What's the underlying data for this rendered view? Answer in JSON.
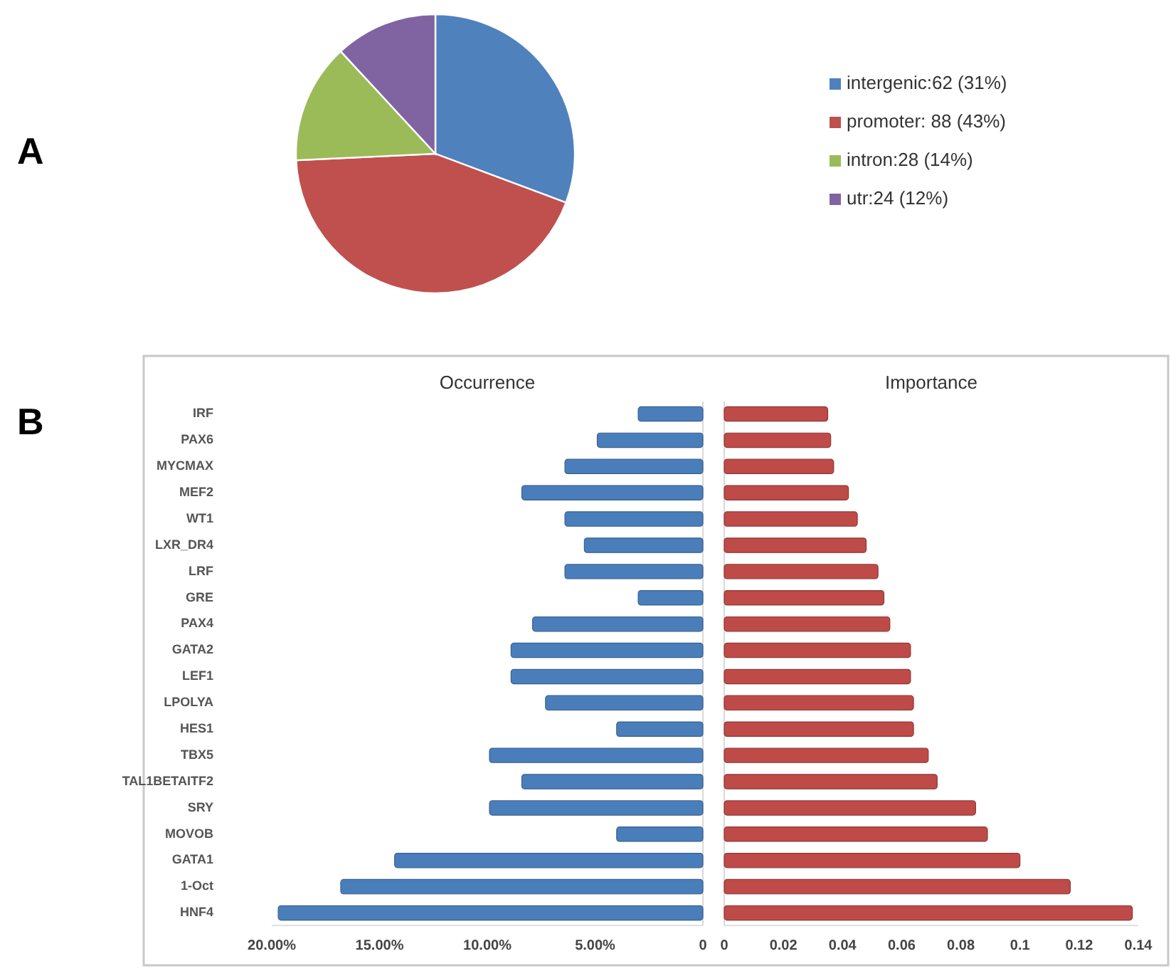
{
  "chart_data": [
    {
      "type": "pie",
      "categories": [
        "intergenic:62 (31%)",
        "promoter: 88 (43%)",
        "intron:28 (14%)",
        "utr:24 (12%)"
      ],
      "values": [
        62,
        88,
        28,
        24
      ],
      "colors": [
        "#4f81bd",
        "#c0504d",
        "#9bbb59",
        "#8064a2"
      ],
      "legend": "right",
      "annotations": [
        "A"
      ]
    },
    {
      "type": "bar",
      "orientation": "horizontal",
      "title": "Occurrence",
      "annotations": [
        "B"
      ],
      "categories": [
        "IRF",
        "PAX6",
        "MYCMAX",
        "MEF2",
        "WT1",
        "LXR_DR4",
        "LRF",
        "GRE",
        "PAX4",
        "GATA2",
        "LEF1",
        "LPOLYA",
        "HES1",
        "TBX5",
        "TAL1BETAITF2",
        "SRY",
        "MOVOB",
        "GATA1",
        "1-Oct",
        "HNF4"
      ],
      "values": [
        3.0,
        4.9,
        6.4,
        8.4,
        6.4,
        5.5,
        6.4,
        3.0,
        7.9,
        8.9,
        8.9,
        7.3,
        4.0,
        9.9,
        8.4,
        9.9,
        4.0,
        14.3,
        16.8,
        19.7
      ],
      "color": "#4a7ebb",
      "xlim": [
        20,
        0
      ],
      "xticks": [
        {
          "value": 20,
          "label": "20.00%"
        },
        {
          "value": 15,
          "label": "15.00%"
        },
        {
          "value": 10,
          "label": "10.00%"
        },
        {
          "value": 5,
          "label": "5.00%"
        },
        0
      ]
    },
    {
      "type": "bar",
      "orientation": "horizontal",
      "title": "Importance",
      "tick_labels": "x",
      "categories": [
        null,
        null,
        null,
        null,
        null,
        null,
        null,
        null,
        null,
        null,
        null,
        null,
        null,
        null,
        null,
        null,
        null,
        null,
        null,
        null
      ],
      "values": [
        0.035,
        0.036,
        0.037,
        0.042,
        0.045,
        0.048,
        0.052,
        0.054,
        0.056,
        0.063,
        0.063,
        0.064,
        0.064,
        0.069,
        0.072,
        0.085,
        0.089,
        0.1,
        0.117,
        0.138
      ],
      "color": "#be4b48",
      "xlim": [
        0,
        0.14
      ],
      "xticks": [
        0,
        0.02,
        0.04,
        0.06,
        0.08,
        0.1,
        0.12,
        0.14
      ]
    }
  ]
}
